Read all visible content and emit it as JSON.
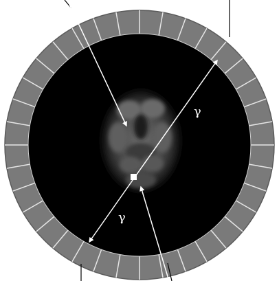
{
  "figure": {
    "gamma_label_upper": "γ",
    "gamma_label_lower": "γ",
    "detector_ring_segments": 36,
    "colors": {
      "background": "#ffffff",
      "detector_fill": "#7a7a7a",
      "detector_separator": "#e6e6e6",
      "field_of_view": "#000000",
      "arrow": "#ffffff",
      "leader_line": "#000000",
      "source_point": "#ffffff"
    },
    "icons": {
      "annihilation_point": "square-marker-icon",
      "gamma_arrow_upper": "arrow-head-icon",
      "gamma_arrow_lower": "arrow-head-icon"
    }
  }
}
